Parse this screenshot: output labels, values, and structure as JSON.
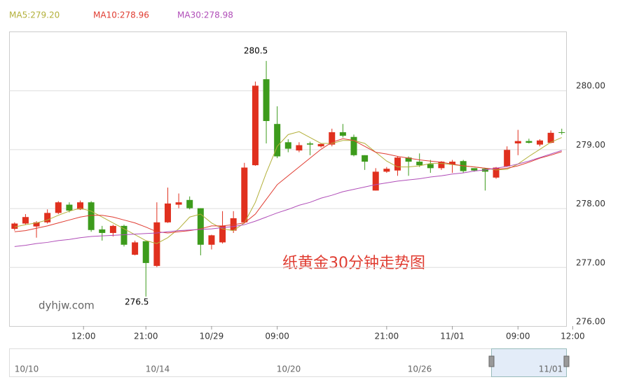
{
  "chart_data": {
    "type": "candlestick",
    "title": "纸黄金30分钟走势图",
    "watermark": "dyhjw.com",
    "up_color": "#e0301e",
    "down_color": "#3d9b1c",
    "categories": [
      null,
      null,
      null,
      null,
      null,
      null,
      null,
      null,
      null,
      null,
      null,
      null,
      null,
      null,
      null,
      null,
      null,
      null,
      null,
      null,
      null,
      null,
      null,
      null,
      null,
      null,
      null,
      null,
      null,
      null,
      null,
      null,
      null,
      null,
      null,
      null,
      null,
      null,
      null,
      null,
      null,
      null,
      null,
      null,
      null,
      null,
      null,
      null,
      null,
      null,
      null
    ],
    "open": [
      277.65,
      277.74,
      277.69,
      277.76,
      277.92,
      278.06,
      277.98,
      278.1,
      277.64,
      277.58,
      277.7,
      277.21,
      277.44,
      277.02,
      277.76,
      278.06,
      278.14,
      278.0,
      277.38,
      277.42,
      277.62,
      277.76,
      278.73,
      280.19,
      279.43,
      279.12,
      278.98,
      279.1,
      279.05,
      279.08,
      279.29,
      279.21,
      278.9,
      278.3,
      278.62,
      278.64,
      278.86,
      278.79,
      278.75,
      278.68,
      278.74,
      278.8,
      278.68,
      278.67,
      278.52,
      278.71,
      279.1,
      279.14,
      279.08,
      279.11,
      279.29
    ],
    "high": [
      277.76,
      277.9,
      277.78,
      277.98,
      278.12,
      278.1,
      278.13,
      278.12,
      277.7,
      277.72,
      277.72,
      277.45,
      277.44,
      278.1,
      278.35,
      278.25,
      278.2,
      278.0,
      277.55,
      277.95,
      277.95,
      278.77,
      280.15,
      280.5,
      279.73,
      279.17,
      279.12,
      279.13,
      279.1,
      279.35,
      279.43,
      279.25,
      278.9,
      278.68,
      278.7,
      278.88,
      278.88,
      278.93,
      278.82,
      278.8,
      278.82,
      278.82,
      278.66,
      278.68,
      278.7,
      279.05,
      279.33,
      279.18,
      279.17,
      279.32,
      279.35
    ],
    "low": [
      277.62,
      277.72,
      277.5,
      277.74,
      277.9,
      277.93,
      277.97,
      277.6,
      277.45,
      277.52,
      277.35,
      277.2,
      276.5,
      277.0,
      277.75,
      278.0,
      277.98,
      277.2,
      277.3,
      277.4,
      277.58,
      277.74,
      278.72,
      279.1,
      278.85,
      278.95,
      278.95,
      278.9,
      279.03,
      279.05,
      279.2,
      278.88,
      278.65,
      278.3,
      278.6,
      278.55,
      278.55,
      278.7,
      278.6,
      278.65,
      278.6,
      278.6,
      278.62,
      278.3,
      278.5,
      278.7,
      278.9,
      279.1,
      279.05,
      279.1,
      279.25
    ],
    "close": [
      277.74,
      277.85,
      277.76,
      277.92,
      278.1,
      277.96,
      278.1,
      277.63,
      277.58,
      277.7,
      277.38,
      277.42,
      277.07,
      277.76,
      278.08,
      278.1,
      278.0,
      277.38,
      277.54,
      277.7,
      277.83,
      278.69,
      280.08,
      279.48,
      278.88,
      279.01,
      279.07,
      279.08,
      279.09,
      279.29,
      279.23,
      278.9,
      278.79,
      278.62,
      278.67,
      278.86,
      278.79,
      278.73,
      278.68,
      278.79,
      278.79,
      278.63,
      278.64,
      278.62,
      278.69,
      278.99,
      279.14,
      279.11,
      279.15,
      279.28,
      279.28
    ],
    "series": [
      {
        "name": "MA5:279.20",
        "color": "#b3b03a",
        "values": [
          277.68,
          277.72,
          277.75,
          277.8,
          277.88,
          277.95,
          278.0,
          277.95,
          277.85,
          277.75,
          277.65,
          277.55,
          277.45,
          277.4,
          277.5,
          277.65,
          277.85,
          277.9,
          277.75,
          277.65,
          277.62,
          277.75,
          278.1,
          278.6,
          279.05,
          279.25,
          279.3,
          279.2,
          279.1,
          279.1,
          279.15,
          279.15,
          279.1,
          278.95,
          278.8,
          278.7,
          278.7,
          278.72,
          278.76,
          278.76,
          278.74,
          278.72,
          278.7,
          278.68,
          278.65,
          278.66,
          278.75,
          278.88,
          279.0,
          279.12,
          279.2
        ]
      },
      {
        "name": "MA10:278.96",
        "color": "#e03c31",
        "values": [
          277.6,
          277.62,
          277.66,
          277.7,
          277.75,
          277.8,
          277.85,
          277.88,
          277.88,
          277.85,
          277.8,
          277.75,
          277.68,
          277.6,
          277.58,
          277.6,
          277.62,
          277.65,
          277.7,
          277.7,
          277.72,
          277.75,
          277.9,
          278.15,
          278.4,
          278.55,
          278.7,
          278.85,
          279.0,
          279.12,
          279.18,
          279.15,
          279.05,
          278.95,
          278.92,
          278.88,
          278.85,
          278.82,
          278.8,
          278.78,
          278.75,
          278.72,
          278.7,
          278.68,
          278.66,
          278.68,
          278.72,
          278.78,
          278.85,
          278.9,
          278.96
        ]
      },
      {
        "name": "MA30:278.98",
        "color": "#b04db8",
        "values": [
          277.35,
          277.37,
          277.4,
          277.42,
          277.45,
          277.47,
          277.5,
          277.52,
          277.53,
          277.54,
          277.55,
          277.56,
          277.57,
          277.58,
          277.6,
          277.62,
          277.63,
          277.64,
          277.65,
          277.67,
          277.69,
          277.72,
          277.78,
          277.85,
          277.92,
          277.98,
          278.05,
          278.1,
          278.17,
          278.22,
          278.28,
          278.32,
          278.36,
          278.4,
          278.43,
          278.46,
          278.48,
          278.5,
          278.53,
          278.55,
          278.58,
          278.6,
          278.63,
          278.65,
          278.68,
          278.71,
          278.75,
          278.8,
          278.86,
          278.92,
          278.98
        ]
      }
    ],
    "xlim": [
      -0.5,
      50.4
    ],
    "xticks": [
      {
        "value": 6.3,
        "label": "12:00"
      },
      {
        "value": 12,
        "label": "21:00"
      },
      {
        "value": 18,
        "label": "10/29"
      },
      {
        "value": 24,
        "label": "09:00"
      },
      {
        "value": 34,
        "label": "21:00"
      },
      {
        "value": 40,
        "label": "11/01"
      },
      {
        "value": 46,
        "label": "09:00"
      },
      {
        "value": 51,
        "label": "12:00"
      }
    ],
    "ylim": [
      276,
      281
    ],
    "yticks": [
      {
        "value": 276,
        "label": "276.00"
      },
      {
        "value": 277,
        "label": "277.00"
      },
      {
        "value": 278,
        "label": "278.00"
      },
      {
        "value": 279,
        "label": "279.00"
      },
      {
        "value": 280,
        "label": "280.00"
      }
    ],
    "grid": true,
    "navigator_labels": [
      "10/10",
      "10/14",
      "10/20",
      "10/26",
      "11/01"
    ]
  }
}
